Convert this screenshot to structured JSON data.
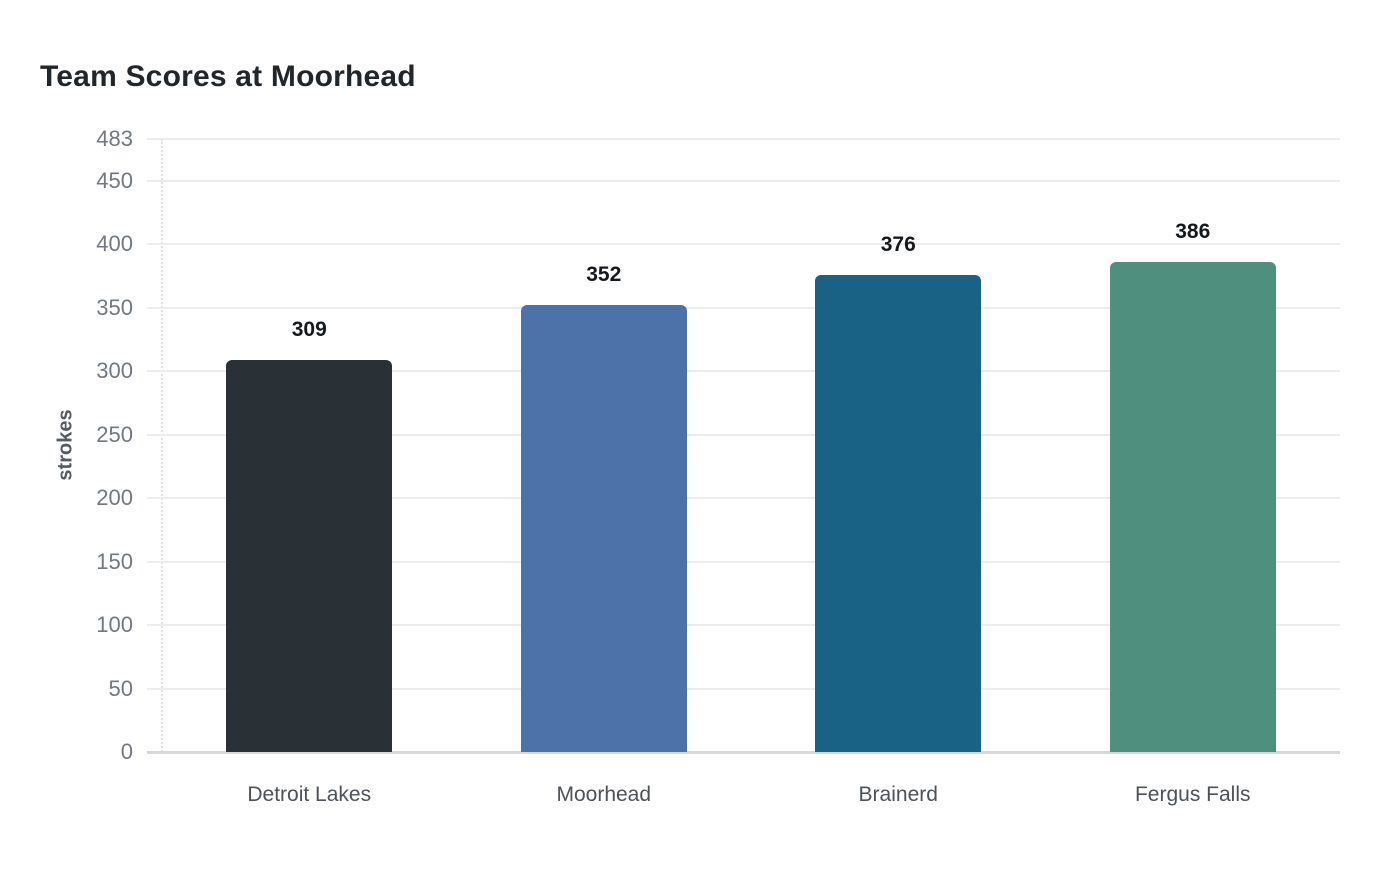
{
  "chart_data": {
    "type": "bar",
    "title": "Team Scores at Moorhead",
    "categories": [
      "Detroit Lakes",
      "Moorhead",
      "Brainerd",
      "Fergus Falls"
    ],
    "values": [
      309,
      352,
      376,
      386
    ],
    "value_labels": [
      "309",
      "352",
      "376",
      "386"
    ],
    "bar_colors": [
      "#2a3136",
      "#4d72a9",
      "#1a6285",
      "#4f8f7d"
    ],
    "xlabel": "",
    "ylabel": "strokes",
    "ylim": [
      0,
      483
    ],
    "yticks": [
      0,
      50,
      100,
      150,
      200,
      250,
      300,
      350,
      400,
      450,
      483
    ],
    "grid": true,
    "legend_position": "none",
    "value_labels_shown": true
  },
  "style": {
    "background": "#ffffff",
    "title_color": "#21262b",
    "ylabel_color": "#555b61",
    "tick_label_color": "#71787f",
    "category_label_color": "#4c5257",
    "value_label_color": "#16191c",
    "grid_color": "#ededed",
    "axis_line_color": "#d7d7d7"
  }
}
